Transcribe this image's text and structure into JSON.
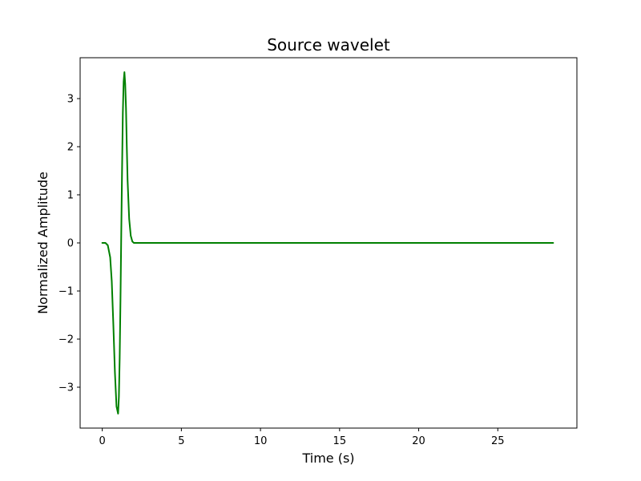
{
  "chart_data": {
    "type": "line",
    "title": "Source wavelet",
    "xlabel": "Time (s)",
    "ylabel": "Normalized Amplitude",
    "xlim": [
      -1.4,
      30.0
    ],
    "ylim": [
      -3.85,
      3.85
    ],
    "xticks": [
      0,
      5,
      10,
      15,
      20,
      25
    ],
    "xtick_labels": [
      "0",
      "5",
      "10",
      "15",
      "20",
      "25"
    ],
    "yticks": [
      -3,
      -2,
      -1,
      0,
      1,
      2,
      3
    ],
    "ytick_labels": [
      "−3",
      "−2",
      "−1",
      "0",
      "1",
      "2",
      "3"
    ],
    "grid": false,
    "series": [
      {
        "color": "#008000",
        "x": [
          0.0,
          0.2,
          0.35,
          0.5,
          0.6,
          0.7,
          0.8,
          0.9,
          1.0,
          1.05,
          1.1,
          1.15,
          1.2,
          1.25,
          1.3,
          1.35,
          1.4,
          1.45,
          1.5,
          1.55,
          1.6,
          1.7,
          1.8,
          1.9,
          2.0,
          2.2,
          2.5,
          5.0,
          10.0,
          15.0,
          20.0,
          25.0,
          28.5
        ],
        "y": [
          0.0,
          0.0,
          -0.05,
          -0.3,
          -0.8,
          -1.7,
          -2.7,
          -3.4,
          -3.55,
          -3.2,
          -2.4,
          -1.2,
          0.2,
          1.5,
          2.7,
          3.35,
          3.55,
          3.3,
          2.8,
          2.0,
          1.3,
          0.5,
          0.15,
          0.03,
          0.0,
          0.0,
          0.0,
          0.0,
          0.0,
          0.0,
          0.0,
          0.0,
          0.0
        ]
      }
    ]
  }
}
